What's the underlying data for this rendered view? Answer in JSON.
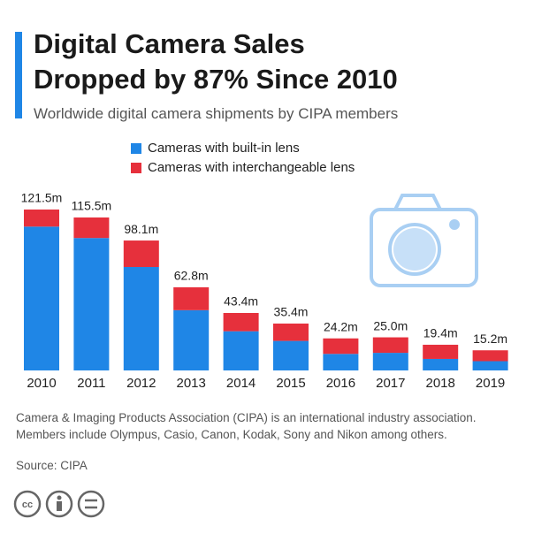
{
  "chart_data": {
    "type": "stacked-bar",
    "title": [
      "Digital Camera Sales",
      "Dropped by 87% Since 2010"
    ],
    "subtitle": "Worldwide digital camera shipments by CIPA members",
    "categories": [
      "2010",
      "2011",
      "2012",
      "2013",
      "2014",
      "2015",
      "2016",
      "2017",
      "2018",
      "2019"
    ],
    "series": [
      {
        "name": "Cameras with built-in lens",
        "color": "#1f86e6",
        "values": [
          108.6,
          100.0,
          78.1,
          45.5,
          29.6,
          22.3,
          12.5,
          13.3,
          8.7,
          7.0
        ]
      },
      {
        "name": "Cameras with interchangeable lens",
        "color": "#e6303c",
        "values": [
          12.9,
          15.5,
          20.0,
          17.3,
          13.8,
          13.1,
          11.7,
          11.7,
          10.7,
          8.2
        ]
      }
    ],
    "totals": [
      121.5,
      115.5,
      98.1,
      62.8,
      43.4,
      35.4,
      24.2,
      25.0,
      19.4,
      15.2
    ],
    "total_labels": [
      "121.5m",
      "115.5m",
      "98.1m",
      "62.8m",
      "43.4m",
      "35.4m",
      "24.2m",
      "25.0m",
      "19.4m",
      "15.2m"
    ],
    "note": "Camera & Imaging Products Association (CIPA) is an international industry association. Members include Olympus, Casio, Canon, Kodak, Sony and Nikon among others.",
    "source": "Source: CIPA"
  }
}
